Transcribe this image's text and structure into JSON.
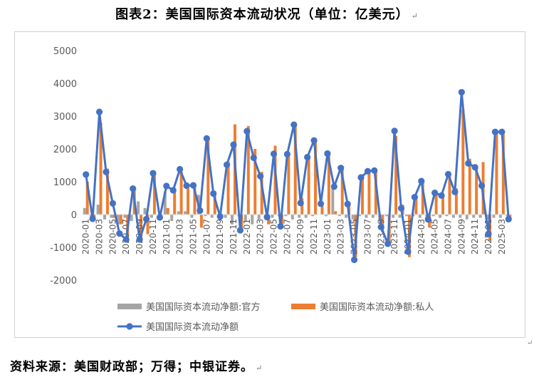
{
  "title": "图表2：美国国际资本流动状况（单位：亿美元）",
  "return_mark": "↵",
  "source": "资料来源：美国财政部；万得；中银证券。",
  "colors": {
    "official": "#a5a5a5",
    "private": "#ed7d31",
    "total": "#4472c4"
  },
  "chart_data": {
    "type": "bar",
    "title": "",
    "xlabel": "",
    "ylabel": "",
    "ylim": [
      -2000,
      5000
    ],
    "yticks": [
      -2000,
      -1000,
      0,
      1000,
      2000,
      3000,
      4000,
      5000
    ],
    "grid": false,
    "legend_position": "bottom",
    "x": [
      "2020-01",
      "2020-02",
      "2020-03",
      "2020-04",
      "2020-05",
      "2020-06",
      "2020-07",
      "2020-08",
      "2020-09",
      "2020-10",
      "2020-11",
      "2020-12",
      "2021-01",
      "2021-02",
      "2021-03",
      "2021-04",
      "2021-05",
      "2021-06",
      "2021-07",
      "2021-08",
      "2021-09",
      "2021-10",
      "2021-11",
      "2021-12",
      "2022-01",
      "2022-02",
      "2022-03",
      "2022-04",
      "2022-05",
      "2022-06",
      "2022-07",
      "2022-08",
      "2022-09",
      "2022-10",
      "2022-11",
      "2022-12",
      "2023-01",
      "2023-02",
      "2023-03",
      "2023-04",
      "2023-05",
      "2023-06",
      "2023-07",
      "2023-08",
      "2023-09",
      "2023-10",
      "2023-11",
      "2023-12",
      "2024-01",
      "2024-02",
      "2024-03",
      "2024-04",
      "2024-05",
      "2024-06",
      "2024-07",
      "2024-08",
      "2024-09",
      "2024-10",
      "2024-11",
      "2024-12",
      "2025-01",
      "2025-02",
      "2025-03",
      "2025-04"
    ],
    "x_tick_labels": [
      "2020-01",
      "2020-03",
      "2020-05",
      "2020-07",
      "2020-09",
      "2020-11",
      "2021-01",
      "2021-03",
      "2021-05",
      "2021-07",
      "2021-09",
      "2021-11",
      "2022-01",
      "2022-03",
      "2022-05",
      "2022-07",
      "2022-09",
      "2022-11",
      "2023-01",
      "2023-03",
      "2023-05",
      "2023-07",
      "2023-09",
      "2023-11",
      "2024-01",
      "2024-03",
      "2024-05",
      "2024-07",
      "2024-09",
      "2024-11",
      "2025-01",
      "2025-03"
    ],
    "series": [
      {
        "name": "美国国际资本流动净额:官方",
        "type": "bar",
        "values": [
          200,
          -100,
          300,
          -150,
          -100,
          -300,
          -100,
          -200,
          400,
          200,
          -100,
          0,
          700,
          -200,
          100,
          100,
          -100,
          600,
          -50,
          -100,
          -50,
          -100,
          -300,
          -50,
          -200,
          -300,
          -150,
          -50,
          -100,
          -50,
          -50,
          -150,
          -100,
          -100,
          -50,
          0,
          -50,
          800,
          -50,
          -100,
          -150,
          -50,
          -100,
          -100,
          -200,
          -50,
          -100,
          -100,
          -50,
          -50,
          -100,
          -100,
          -50,
          -100,
          -50,
          -100,
          -100,
          -150,
          -100,
          -100,
          -150,
          -100,
          -100,
          -50
        ]
      },
      {
        "name": "美国国际资本流动净额:私人",
        "type": "bar",
        "values": [
          1000,
          -100,
          2800,
          1400,
          -100,
          -300,
          -700,
          800,
          -800,
          -600,
          1300,
          -100,
          200,
          800,
          1300,
          800,
          900,
          -400,
          2300,
          700,
          -100,
          1600,
          2750,
          -450,
          2700,
          2000,
          1300,
          -300,
          2100,
          -300,
          1800,
          2700,
          500,
          1800,
          2200,
          300,
          1900,
          100,
          1450,
          300,
          -1300,
          1200,
          1300,
          1300,
          -500,
          -900,
          2400,
          300,
          -1300,
          500,
          1000,
          -400,
          650,
          600,
          1200,
          800,
          3200,
          1700,
          1400,
          1600,
          -800,
          2500,
          2450,
          -100
        ]
      },
      {
        "name": "美国国际资本流动净额",
        "type": "line",
        "values": [
          1220,
          -130,
          3130,
          1300,
          340,
          -580,
          -760,
          790,
          -760,
          -140,
          1260,
          -90,
          870,
          740,
          1380,
          880,
          890,
          120,
          2320,
          640,
          -60,
          1520,
          2130,
          -480,
          2540,
          1730,
          1170,
          -80,
          1850,
          -360,
          1840,
          2740,
          350,
          1750,
          2260,
          330,
          1860,
          850,
          1420,
          320,
          -1380,
          1130,
          1320,
          1340,
          -380,
          -890,
          2550,
          190,
          -1130,
          530,
          1020,
          -150,
          660,
          580,
          1230,
          690,
          3730,
          1560,
          1440,
          880,
          -590,
          2520,
          2520,
          -140
        ]
      }
    ]
  }
}
